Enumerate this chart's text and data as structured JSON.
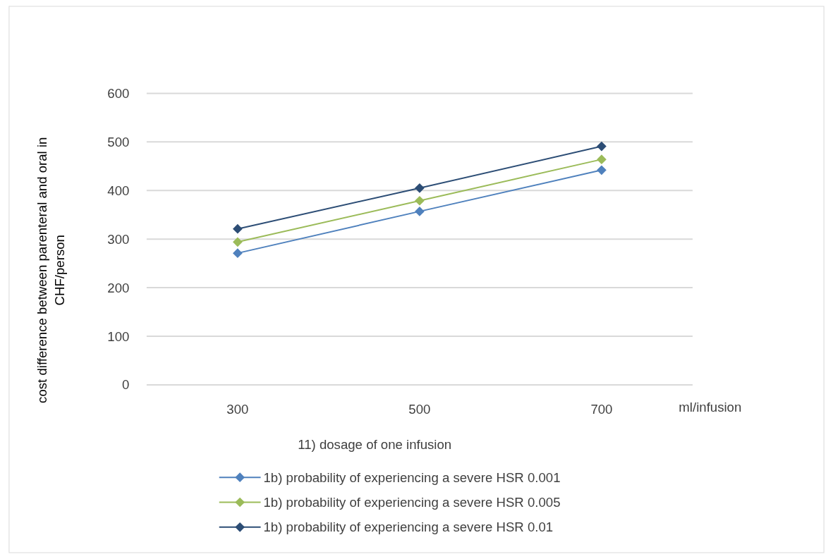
{
  "chart_data": {
    "type": "line",
    "xlabel": "11) dosage of one infusion",
    "ylabel": "cost difference between parenteral and oral in CHF/person",
    "categories": [
      "300",
      "500",
      "700"
    ],
    "series": [
      {
        "name": "1b) probability of experiencing a severe HSR 0.001",
        "color": "#4f81bd",
        "values": [
          271,
          357,
          442
        ]
      },
      {
        "name": "1b) probability of experiencing a severe HSR 0.005",
        "color": "#9bbb59",
        "values": [
          294,
          379,
          464
        ]
      },
      {
        "name": "1b) probability of experiencing a severe HSR 0.01",
        "color": "#2c4d75",
        "values": [
          321,
          405,
          491
        ]
      }
    ],
    "ylim": [
      0,
      600
    ],
    "yticks": [
      0,
      100,
      200,
      300,
      400,
      500,
      600
    ],
    "grid": "y",
    "legend": "bottom",
    "marker": "diamond",
    "line_style": "solid",
    "annotations": [
      "ml/infusion"
    ]
  }
}
